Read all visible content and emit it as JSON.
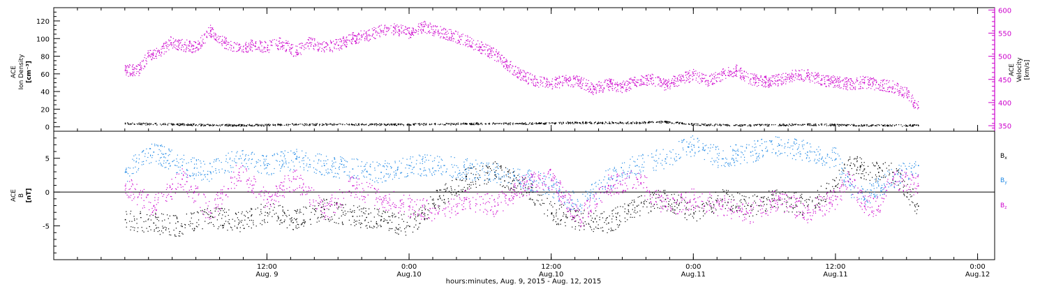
{
  "chart_data": [
    {
      "type": "scatter",
      "panel": "top",
      "ylabel": [
        "ACE",
        "Ion Density",
        "[cm⁻³]"
      ],
      "ylim": [
        -5,
        135
      ],
      "yticks": [
        0,
        20,
        40,
        60,
        80,
        100,
        120
      ],
      "y2label": [
        "ACE",
        "Velocity",
        "[km/s]"
      ],
      "y2lim": [
        338,
        605
      ],
      "y2ticks": [
        350,
        400,
        450,
        500,
        550,
        600
      ],
      "series": [
        {
          "axis": "right",
          "color": "#cc00cc",
          "x": [
            0.0,
            0.05,
            0.08,
            0.12,
            0.16,
            0.2,
            0.25,
            0.3,
            0.35,
            0.4,
            0.45,
            0.5,
            0.55,
            0.6,
            0.65,
            0.7,
            0.75,
            0.8,
            0.85,
            0.9,
            0.95,
            1.0,
            1.05,
            1.1,
            1.15,
            1.2,
            1.25,
            1.3,
            1.35,
            1.4,
            1.45,
            1.5,
            1.55,
            1.6,
            1.65,
            1.7,
            1.75,
            1.8,
            1.85,
            1.9,
            1.95,
            2.0,
            2.05,
            2.1,
            2.15,
            2.2,
            2.25,
            2.3,
            2.35,
            2.4,
            2.45,
            2.5,
            2.55,
            2.6,
            2.65,
            2.7,
            2.75,
            2.79
          ],
          "values": [
            470,
            472,
            500,
            510,
            530,
            525,
            520,
            555,
            530,
            515,
            525,
            520,
            530,
            510,
            530,
            520,
            525,
            540,
            545,
            555,
            560,
            550,
            565,
            555,
            545,
            535,
            520,
            505,
            480,
            458,
            445,
            440,
            450,
            445,
            430,
            440,
            435,
            445,
            452,
            440,
            450,
            460,
            448,
            460,
            470,
            452,
            445,
            450,
            458,
            460,
            450,
            445,
            440,
            445,
            440,
            435,
            420,
            390
          ]
        },
        {
          "axis": "left",
          "color": "#000000",
          "x": [
            0.0,
            0.2,
            0.4,
            0.6,
            0.8,
            1.0,
            1.2,
            1.4,
            1.6,
            1.8,
            1.9,
            2.0,
            2.2,
            2.4,
            2.6,
            2.79
          ],
          "values": [
            4,
            3,
            2,
            3,
            3,
            3,
            4,
            4,
            5,
            5,
            6,
            3,
            2,
            3,
            2,
            2
          ]
        }
      ]
    },
    {
      "type": "scatter",
      "panel": "bottom",
      "ylabel": [
        "ACE",
        "B",
        "[nT]"
      ],
      "ylim": [
        -10,
        9
      ],
      "yticks": [
        -5,
        0,
        5
      ],
      "zero_line": true,
      "series": [
        {
          "name": "Bx",
          "color": "#000000",
          "x": [
            0.0,
            0.1,
            0.2,
            0.3,
            0.4,
            0.5,
            0.6,
            0.7,
            0.8,
            0.9,
            1.0,
            1.1,
            1.2,
            1.3,
            1.4,
            1.5,
            1.6,
            1.7,
            1.8,
            1.9,
            2.0,
            2.1,
            2.2,
            2.3,
            2.4,
            2.5,
            2.55,
            2.6,
            2.65,
            2.7,
            2.79
          ],
          "values": [
            -4,
            -4.5,
            -5,
            -3.5,
            -4.5,
            -3,
            -4,
            -2.5,
            -3.5,
            -4,
            -5,
            -1,
            2,
            3,
            1,
            -3,
            -4,
            -4.5,
            -2,
            -1,
            -3,
            -1,
            -2,
            -1,
            -2,
            1,
            4,
            3.5,
            3,
            3,
            -2
          ]
        },
        {
          "name": "By",
          "color": "#1e88e5",
          "x": [
            0.0,
            0.1,
            0.2,
            0.3,
            0.4,
            0.5,
            0.6,
            0.7,
            0.8,
            0.9,
            1.0,
            1.1,
            1.2,
            1.3,
            1.4,
            1.5,
            1.6,
            1.7,
            1.8,
            1.9,
            2.0,
            2.1,
            2.2,
            2.3,
            2.4,
            2.5,
            2.55,
            2.6,
            2.65,
            2.7,
            2.79
          ],
          "values": [
            3,
            6,
            4,
            3,
            5,
            4,
            5,
            4,
            3.5,
            3,
            4,
            4,
            3.5,
            3,
            2,
            1,
            -2,
            2,
            4,
            5,
            7,
            5,
            6,
            7,
            6,
            5,
            1,
            -1,
            1,
            2,
            4
          ]
        },
        {
          "name": "Bz",
          "color": "#cc00cc",
          "x": [
            0.0,
            0.1,
            0.2,
            0.3,
            0.4,
            0.5,
            0.6,
            0.7,
            0.8,
            0.9,
            1.0,
            1.1,
            1.2,
            1.3,
            1.4,
            1.5,
            1.6,
            1.7,
            1.8,
            1.9,
            2.0,
            2.1,
            2.2,
            2.3,
            2.4,
            2.5,
            2.55,
            2.6,
            2.65,
            2.7,
            2.79
          ],
          "values": [
            1,
            -2,
            2,
            -3,
            3,
            -1,
            2,
            -3,
            1,
            -1,
            -2,
            -3,
            -1,
            -2,
            1,
            2,
            -4,
            1,
            2,
            -2,
            -1,
            -2,
            -3,
            -1,
            -3,
            -1,
            2,
            -2,
            -2,
            2,
            1
          ]
        }
      ]
    }
  ],
  "x_axis": {
    "xlim": [
      -0.25,
      3.06
    ],
    "major_ticks": [
      0.5,
      1.0,
      1.5,
      2.0,
      2.5,
      3.0
    ],
    "tick_labels": [
      [
        "12:00",
        "Aug. 9"
      ],
      [
        "0:00",
        "Aug.10"
      ],
      [
        "12:00",
        "Aug.10"
      ],
      [
        "0:00",
        "Aug.11"
      ],
      [
        "12:00",
        "Aug.11"
      ],
      [
        "0:00",
        "Aug.12"
      ]
    ],
    "title": "hours:minutes, Aug.  9, 2015 - Aug. 12, 2015"
  },
  "legend": {
    "labels": [
      "Bx",
      "By",
      "Bz"
    ],
    "colors": [
      "#000000",
      "#1e88e5",
      "#cc00cc"
    ],
    "position": "right"
  }
}
